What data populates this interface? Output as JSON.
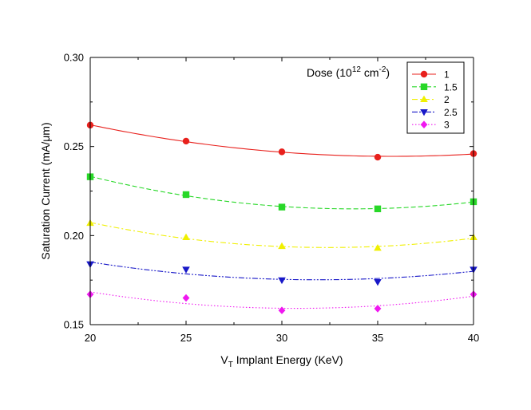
{
  "chart_data": {
    "type": "line",
    "title": "",
    "xlabel": {
      "main": "V",
      "sub": "T",
      "rest": " Implant Energy (KeV)"
    },
    "ylabel": {
      "pre": "Saturation Current (mA/",
      "greek": "μ",
      "post": "m)"
    },
    "x": [
      20,
      25,
      30,
      35,
      40
    ],
    "xlim": [
      20,
      40
    ],
    "ylim": [
      0.15,
      0.3
    ],
    "x_ticks": [
      "20",
      "25",
      "30",
      "35",
      "40"
    ],
    "y_ticks": [
      "0.15",
      "0.20",
      "0.25",
      "0.30"
    ],
    "grid": false,
    "legend_title": {
      "pre": "Dose (10",
      "sup1": "12",
      "mid": " cm",
      "sup2": "-2",
      "post": ")"
    },
    "legend_position": "top-right",
    "series": [
      {
        "name": "1",
        "values": [
          0.262,
          0.253,
          0.247,
          0.244,
          0.246
        ],
        "color": "#e8201c",
        "marker": "circle",
        "dash": "solid"
      },
      {
        "name": "1.5",
        "values": [
          0.233,
          0.223,
          0.216,
          0.215,
          0.219
        ],
        "color": "#28d828",
        "marker": "square",
        "dash": "dash"
      },
      {
        "name": "2",
        "values": [
          0.207,
          0.199,
          0.194,
          0.193,
          0.199
        ],
        "color": "#f0f000",
        "marker": "triangle-up",
        "dash": "dashdot"
      },
      {
        "name": "2.5",
        "values": [
          0.184,
          0.181,
          0.175,
          0.174,
          0.181
        ],
        "color": "#1818c8",
        "marker": "triangle-down",
        "dash": "dashdotdot"
      },
      {
        "name": "3",
        "values": [
          0.167,
          0.165,
          0.158,
          0.159,
          0.167
        ],
        "color": "#f018f0",
        "marker": "diamond",
        "dash": "dot"
      }
    ]
  }
}
